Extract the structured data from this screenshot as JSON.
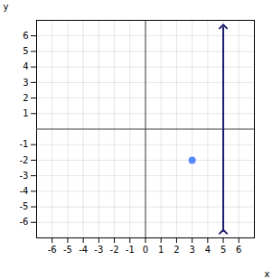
{
  "chart_data": {
    "type": "scatter",
    "xlabel": "x",
    "ylabel": "y",
    "xlim": [
      -7,
      7
    ],
    "ylim": [
      -7,
      7
    ],
    "xticks": [
      -6,
      -5,
      -4,
      -3,
      -2,
      -1,
      0,
      1,
      2,
      3,
      4,
      5,
      6
    ],
    "yticks": [
      -6,
      -5,
      -4,
      -3,
      -2,
      -1,
      1,
      2,
      3,
      4,
      5,
      6
    ],
    "grid": true,
    "series": [
      {
        "type": "line",
        "color": "#1a1a6e",
        "line_style": "solid",
        "x": [
          5,
          5
        ],
        "values": [
          -6.6,
          6.6
        ]
      },
      {
        "type": "scatter",
        "color": "#5588ff",
        "marker": "circle",
        "x": [
          3
        ],
        "values": [
          -2
        ]
      }
    ]
  }
}
